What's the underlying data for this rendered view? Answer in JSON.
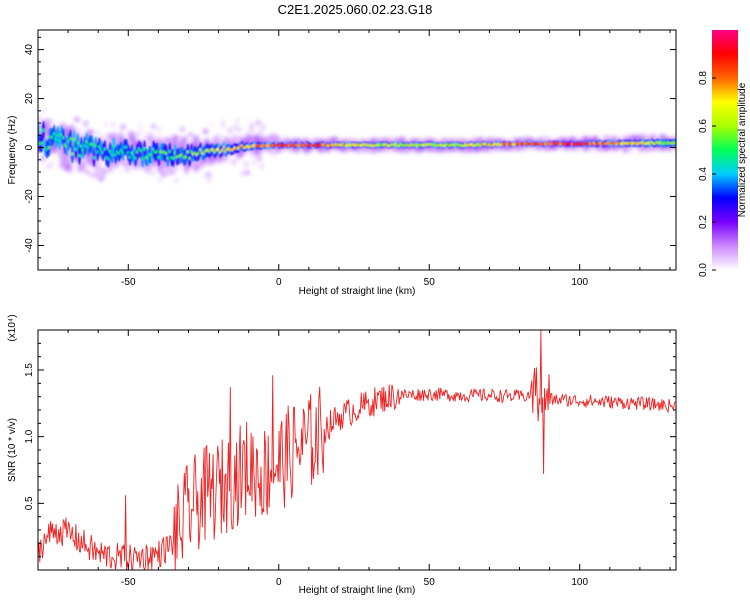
{
  "figure": {
    "title": "C2E1.2025.060.02.23.G18"
  },
  "chart_data": [
    {
      "type": "heatmap",
      "title": "C2E1.2025.060.02.23.G18",
      "xlabel": "Height of straight line (km)",
      "ylabel": "Frequency (Hz)",
      "xlim": [
        -80,
        132
      ],
      "ylim": [
        -50,
        48
      ],
      "x_ticks": [
        -50,
        0,
        50,
        100
      ],
      "y_ticks": [
        -40,
        -20,
        0,
        20,
        40
      ],
      "x_tick_labels": [
        "-50",
        "0",
        "50",
        "100"
      ],
      "y_tick_labels": [
        "-40",
        "-20",
        "0",
        "20",
        "40"
      ],
      "colorbar": {
        "label": "Normalized spectral amplitude",
        "range": [
          0,
          1
        ],
        "ticks": [
          0.0,
          0.2,
          0.4,
          0.6,
          0.8
        ],
        "tick_labels": [
          "0.0",
          "0.2",
          "0.4",
          "0.6",
          "0.8"
        ],
        "colors": [
          "#ffffff",
          "#cc88ff",
          "#7a00ff",
          "#0000ff",
          "#00ccff",
          "#00ff55",
          "#aaff00",
          "#ffff00",
          "#ff6600",
          "#ff0000",
          "#ff0088"
        ]
      },
      "ridge": {
        "x": [
          -80,
          -70,
          -60,
          -50,
          -40,
          -30,
          -20,
          -10,
          0,
          10,
          20,
          40,
          60,
          80,
          100,
          132
        ],
        "frequency": [
          4,
          1,
          -2,
          -2,
          -3,
          -3,
          -1,
          0.5,
          1,
          1,
          1,
          1,
          1,
          1.5,
          1.5,
          2
        ],
        "amplitude": [
          0.5,
          0.55,
          0.5,
          0.5,
          0.55,
          0.6,
          0.7,
          0.8,
          0.9,
          0.9,
          0.75,
          0.65,
          0.65,
          0.85,
          0.9,
          0.6
        ],
        "spread_hz": [
          9,
          9,
          9,
          8,
          9,
          8,
          6,
          4,
          3,
          3,
          3,
          3,
          3,
          2.5,
          3,
          4
        ]
      }
    },
    {
      "type": "line",
      "xlabel": "Height of straight line (km)",
      "ylabel": "SNR (10 * v/v)",
      "y_multiplier": "(x10⁴)",
      "xlim": [
        -80,
        132
      ],
      "ylim": [
        0,
        1.8
      ],
      "x_ticks": [
        -50,
        0,
        50,
        100
      ],
      "y_ticks": [
        0.5,
        1.0,
        1.5
      ],
      "x_tick_labels": [
        "-50",
        "0",
        "50",
        "100"
      ],
      "y_tick_labels": [
        "0.5",
        "1.0",
        "1.5"
      ],
      "color": "#ee2222",
      "series": [
        {
          "x": [
            -80,
            -75,
            -70,
            -65,
            -60,
            -55,
            -50,
            -45,
            -40,
            -35,
            -30,
            -25,
            -20,
            -15,
            -10,
            -5,
            0,
            5,
            10,
            15,
            20,
            25,
            30,
            35,
            40,
            50,
            60,
            70,
            80,
            85,
            87,
            90,
            100,
            110,
            120,
            132
          ],
          "values": [
            0.15,
            0.3,
            0.28,
            0.2,
            0.12,
            0.1,
            0.08,
            0.1,
            0.12,
            0.2,
            0.45,
            0.55,
            0.6,
            0.68,
            0.78,
            0.72,
            0.8,
            0.9,
            0.95,
            1.05,
            1.15,
            1.2,
            1.25,
            1.29,
            1.31,
            1.32,
            1.31,
            1.31,
            1.3,
            1.32,
            1.33,
            1.28,
            1.27,
            1.26,
            1.25,
            1.23
          ]
        }
      ],
      "spikes": [
        {
          "x": -51,
          "y": 0.56
        },
        {
          "x": -16,
          "y": 1.37
        },
        {
          "x": -2,
          "y": 1.46
        },
        {
          "x": 87,
          "y": 1.8
        },
        {
          "x": 88,
          "y": 0.72
        }
      ]
    }
  ]
}
